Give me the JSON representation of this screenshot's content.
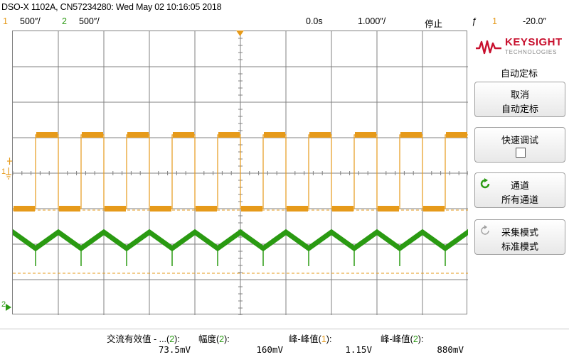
{
  "header": {
    "title": "DSO-X 1102A, CN57234280: Wed May 02 10:16:05 2018",
    "ch1_num": "1",
    "ch1_scale": "500″/",
    "ch2_num": "2",
    "ch2_scale": "500″/",
    "time_offset": "0.0s",
    "time_scale": "1.000″/",
    "run_state": "停止",
    "trigger_icon": "ƒ",
    "trigger_source": "1",
    "trigger_level": "-20.0″"
  },
  "markers": {
    "ch1_ground": "1",
    "ch2_ground": "2",
    "trigger_level": "T"
  },
  "panel": {
    "brand": "KEYSIGHT",
    "brand_sub": "TECHNOLOGIES",
    "title": "自动定标",
    "buttons": [
      {
        "line1": "取消",
        "line2": "自动定标"
      },
      {
        "line1": "快速调试",
        "line2": ""
      },
      {
        "line1": "通道",
        "line2": "所有通道"
      },
      {
        "line1": "采集模式",
        "line2": "标准模式"
      }
    ]
  },
  "measurements": [
    {
      "label_prefix": "交流有效值 - ...(",
      "channel": "2",
      "label_suffix": "):",
      "value": "73.5mV"
    },
    {
      "label_prefix": "幅度(",
      "channel": "2",
      "label_suffix": "):",
      "value": "160mV"
    },
    {
      "label_prefix": "峰-峰值(",
      "channel": "1",
      "label_suffix": "):",
      "value": "1.15V"
    },
    {
      "label_prefix": "峰-峰值(",
      "channel": "2",
      "label_suffix": "):",
      "value": "880mV"
    }
  ],
  "colors": {
    "ch1": "#e69a1a",
    "ch2": "#2a9a12",
    "grid": "#808080",
    "brand": "#c8102e"
  },
  "icons": {
    "logo": "keysight-wave-icon",
    "channel": "refresh-icon-green",
    "acquire": "refresh-icon-gray"
  }
}
